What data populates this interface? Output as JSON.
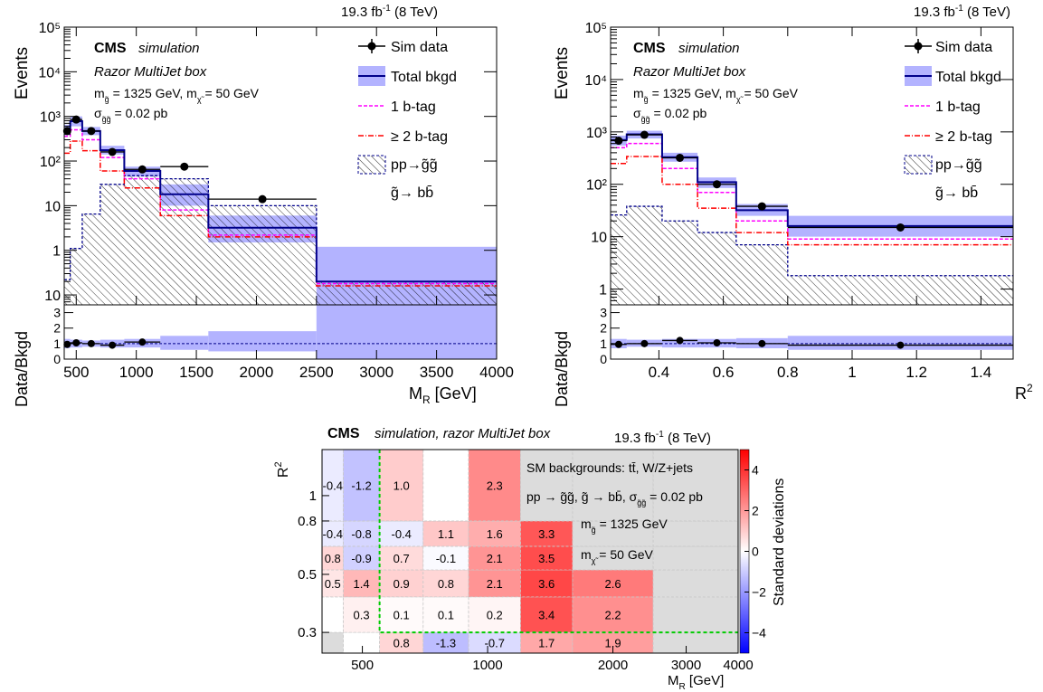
{
  "colors": {
    "data": "#000000",
    "total": "#00008b",
    "band": "#b3b3ff",
    "onebtag": "#ff00ff",
    "twobtag": "#ff0000",
    "signal_hatch": "#000000",
    "signal_line": "#00008b",
    "heat_pos": "#ff0000",
    "heat_neg": "#0000ff",
    "grey_bin": "#dcdcdc",
    "green_outline": "#00cc00"
  },
  "chart_data": [
    {
      "type": "bar",
      "lumi": "19.3 fb",
      "lumi_sup": "-1",
      "lumi_energy": " (8 TeV)",
      "cms": "CMS",
      "cms_sub": "simulation",
      "box": "Razor MultiJet box",
      "mass_line_a": "m",
      "mass_line_a_sub": "g̃",
      "mass_line_a_rest": " = 1325 GeV, m",
      "mass_line_a_sub2": "χ̃",
      "mass_line_a_end": " = 50 GeV",
      "xsec_a": "σ",
      "xsec_sub": "g̃g̃",
      "xsec_b": " = 0.02 pb",
      "ylabel": "Events",
      "ratio_ylabel": "Data/Bkgd",
      "xlabel": "M",
      "xlabel_sub": "R",
      "xlabel_unit": " [GeV]",
      "legend": [
        "Sim data",
        "Total bkgd",
        "1 b-tag",
        "≥ 2 b-tag",
        "pp→g̃g̃",
        "g̃→ bb̄"
      ],
      "xlim": [
        400,
        4000
      ],
      "ylim_log": [
        0.06,
        100000
      ],
      "edges": [
        400,
        450,
        550,
        700,
        900,
        1200,
        1600,
        2500,
        4000
      ],
      "sim_data": [
        470,
        850,
        470,
        160,
        65,
        75,
        14,
        null
      ],
      "total_bkgd": [
        500,
        780,
        470,
        175,
        60,
        18,
        3.2,
        0.2
      ],
      "band_lo": [
        380,
        600,
        380,
        140,
        45,
        10,
        1.5,
        0.06
      ],
      "band_hi": [
        650,
        1000,
        580,
        220,
        75,
        30,
        6,
        1.2
      ],
      "one_btag": [
        360,
        500,
        300,
        120,
        40,
        8,
        2.2,
        0.18
      ],
      "two_btag": [
        150,
        280,
        170,
        60,
        25,
        6,
        2.0,
        0.16
      ],
      "signal": [
        0.22,
        1.1,
        6.5,
        30,
        47,
        40,
        10,
        0.2
      ],
      "ratio_data": [
        0.95,
        1.05,
        1.0,
        0.9,
        1.1,
        null,
        null,
        null
      ],
      "ratio_band_lo": [
        0.7,
        0.75,
        0.8,
        0.75,
        0.75,
        0.6,
        0.5,
        0.0
      ],
      "ratio_band_hi": [
        1.3,
        1.25,
        1.2,
        1.25,
        1.3,
        1.5,
        1.8,
        3.5
      ],
      "xticks": [
        "500",
        "1000",
        "1500",
        "2000",
        "2500",
        "3000",
        "3500",
        "4000"
      ],
      "xtick_vals": [
        500,
        1000,
        1500,
        2000,
        2500,
        3000,
        3500,
        4000
      ],
      "yticks": [
        "10",
        "1",
        "10",
        "10²",
        "10³",
        "10⁴",
        "10⁵"
      ],
      "ratio_yticks": [
        "0",
        "1",
        "2",
        "3"
      ]
    },
    {
      "type": "bar",
      "lumi": "19.3 fb",
      "lumi_sup": "-1",
      "lumi_energy": " (8 TeV)",
      "ylabel": "Events",
      "ratio_ylabel": "Data/Bkgd",
      "xlabel": "R",
      "xlabel_sup": "2",
      "xlim": [
        0.25,
        1.5
      ],
      "ylim_log": [
        0.5,
        100000
      ],
      "edges": [
        0.25,
        0.3,
        0.41,
        0.52,
        0.64,
        0.8,
        1.5
      ],
      "sim_data": [
        680,
        880,
        320,
        100,
        38,
        15
      ],
      "total_bkgd": [
        700,
        900,
        330,
        110,
        32,
        16
      ],
      "band_lo": [
        550,
        750,
        270,
        85,
        25,
        10
      ],
      "band_hi": [
        850,
        1050,
        400,
        135,
        42,
        25
      ],
      "one_btag": [
        500,
        600,
        200,
        70,
        20,
        9
      ],
      "two_btag": [
        250,
        340,
        100,
        35,
        12,
        7
      ],
      "signal": [
        26,
        38,
        20,
        12,
        7,
        1.8
      ],
      "ratio_data": [
        0.95,
        1.0,
        1.2,
        1.05,
        1.0,
        0.9
      ],
      "ratio_band_lo": [
        0.7,
        0.8,
        0.75,
        0.75,
        0.7,
        0.6
      ],
      "ratio_band_hi": [
        1.3,
        1.25,
        1.3,
        1.3,
        1.35,
        1.5
      ],
      "xticks": [
        "0.4",
        "0.6",
        "0.8",
        "1",
        "1.2",
        "1.4"
      ],
      "xtick_vals": [
        0.4,
        0.6,
        0.8,
        1.0,
        1.2,
        1.4
      ],
      "yticks": [
        "1",
        "10",
        "10²",
        "10³",
        "10⁴",
        "10⁵"
      ],
      "ratio_yticks": [
        "0",
        "1",
        "2",
        "3"
      ]
    },
    {
      "type": "heatmap",
      "cms": "CMS",
      "cms_sub": "simulation, razor MultiJet box",
      "lumi": "19.3 fb",
      "lumi_sup": "-1",
      "lumi_energy": " (8 TeV)",
      "ylabel": "R",
      "ylabel_sup": "2",
      "xlabel": "M",
      "xlabel_sub": "R",
      "xlabel_unit": " [GeV]",
      "zlabel": "Standard deviations",
      "zlim": [
        -5,
        5
      ],
      "zticks": [
        "4",
        "2",
        "0",
        "−2",
        "−4"
      ],
      "ztick_vals": [
        4,
        2,
        0,
        -2,
        -4
      ],
      "legend_lines": [
        "SM backgrounds: tt̄, W/Z+jets",
        "pp → g̃g̃, g̃ → bb̄, σ",
        "m",
        "m"
      ],
      "legend_sub": [
        "g̃g̃",
        "g̃",
        "χ̃"
      ],
      "legend_tail": [
        " = 0.02 pb",
        " = 1325 GeV",
        " = 50 GeV"
      ],
      "xedges": [
        400,
        450,
        550,
        700,
        900,
        1200,
        1600,
        2500,
        4000
      ],
      "yedges": [
        0.25,
        0.3,
        0.41,
        0.52,
        0.64,
        0.8,
        1.5
      ],
      "xticks": [
        "500",
        "1000",
        "2000",
        "3000",
        "4000"
      ],
      "xtick_vals": [
        500,
        1000,
        2000,
        3000,
        4000
      ],
      "yticks": [
        "0.3",
        "0.5",
        "0.8",
        "1"
      ],
      "ytick_vals": [
        0.3,
        0.5,
        0.8,
        1.0
      ],
      "cells": [
        [
          null,
          null,
          0.8,
          -1.3,
          -0.7,
          1.7,
          1.9,
          null
        ],
        [
          null,
          0.3,
          0.1,
          0.1,
          0.2,
          3.4,
          2.2,
          null
        ],
        [
          0.5,
          1.4,
          0.9,
          0.8,
          2.1,
          3.6,
          2.6,
          null
        ],
        [
          0.8,
          -0.9,
          0.7,
          -0.1,
          2.1,
          3.5,
          null,
          null
        ],
        [
          -0.4,
          -0.8,
          -0.4,
          1.1,
          1.6,
          3.3,
          null,
          null
        ],
        [
          -0.4,
          -1.2,
          1.0,
          null,
          2.3,
          null,
          null,
          null
        ]
      ],
      "grey": [
        [
          true,
          false,
          false,
          false,
          false,
          false,
          false,
          true
        ],
        [
          false,
          false,
          false,
          false,
          false,
          false,
          false,
          true
        ],
        [
          false,
          false,
          false,
          false,
          false,
          false,
          false,
          true
        ],
        [
          false,
          false,
          false,
          false,
          false,
          false,
          true,
          true
        ],
        [
          false,
          false,
          false,
          false,
          false,
          false,
          true,
          true
        ],
        [
          false,
          false,
          false,
          false,
          false,
          true,
          true,
          true
        ]
      ]
    }
  ]
}
